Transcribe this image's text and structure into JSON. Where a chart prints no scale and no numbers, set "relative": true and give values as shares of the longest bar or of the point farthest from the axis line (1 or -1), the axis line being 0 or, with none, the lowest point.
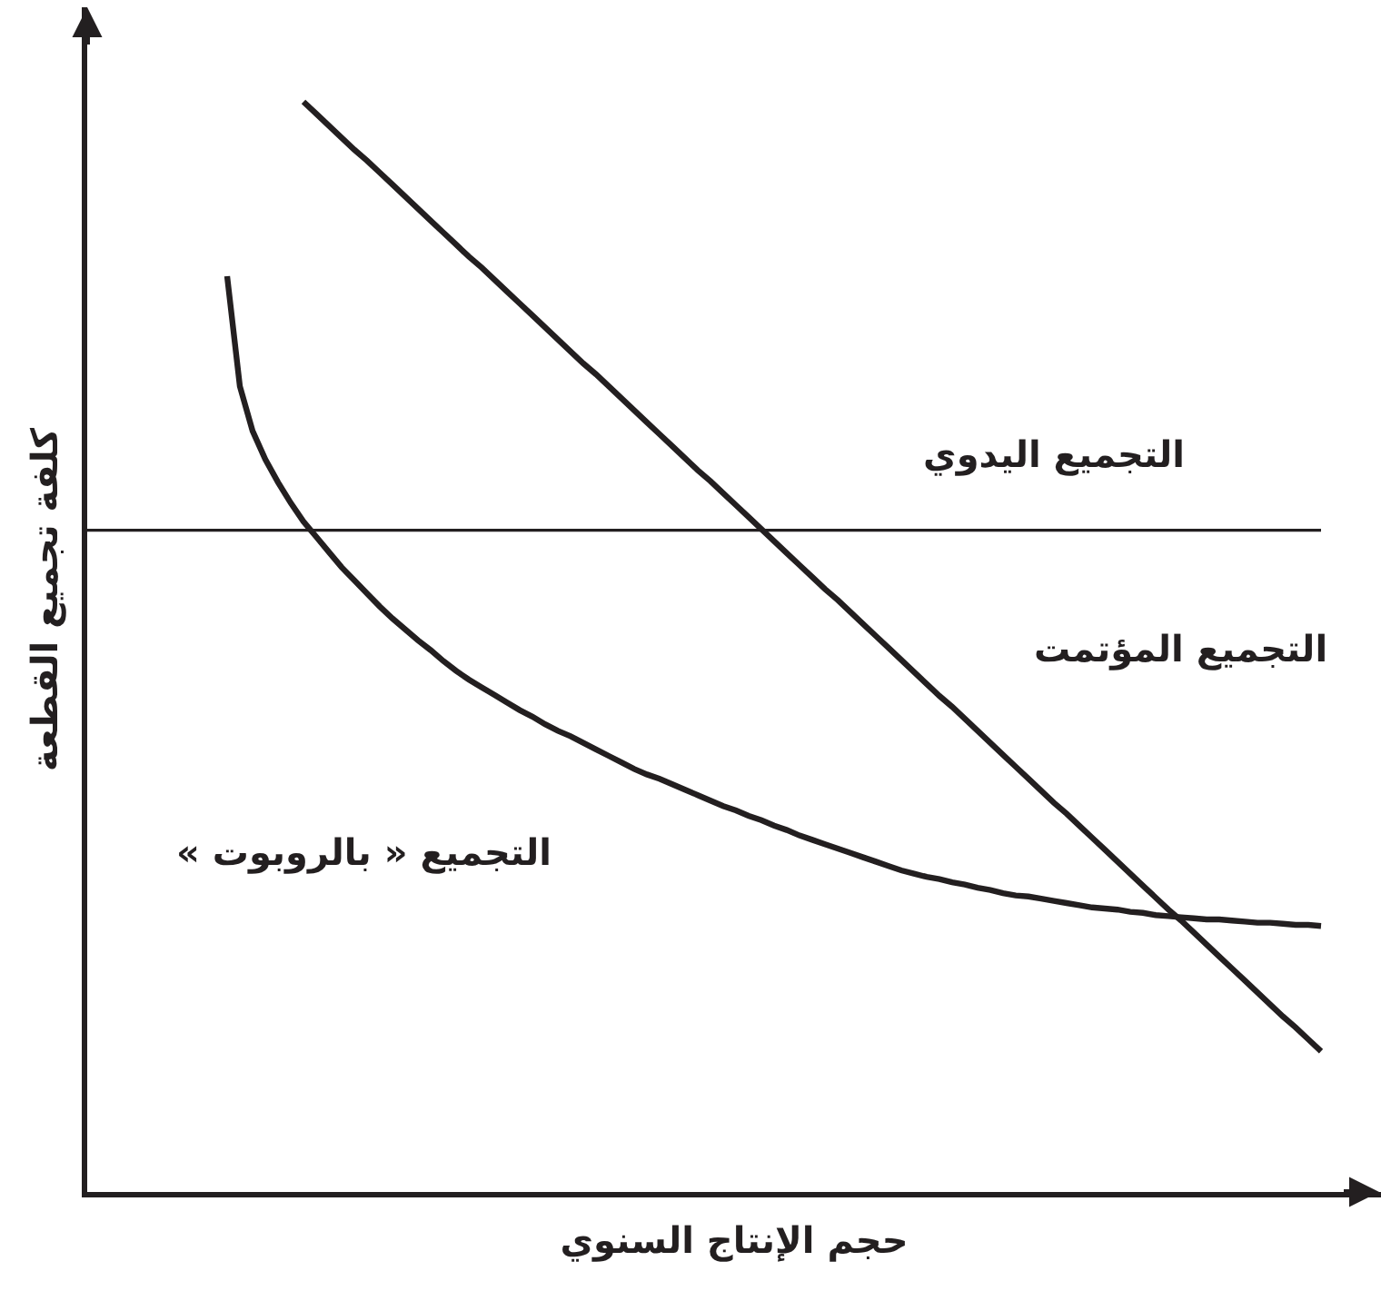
{
  "chart_data": {
    "type": "line",
    "relative": true,
    "tick_labels": false,
    "line_style": "solid",
    "xlabel": "حجم الإنتاج السنوي",
    "ylabel": "كلفة تجميع القطعة",
    "categories": [
      null,
      null,
      null,
      null,
      null,
      null,
      null,
      null,
      null,
      null,
      null,
      null,
      null,
      null,
      null,
      null,
      null,
      null,
      null,
      null,
      null,
      null,
      null,
      null,
      null,
      null,
      null,
      null,
      null,
      null,
      null,
      null,
      null,
      null,
      null,
      null,
      null,
      null,
      null,
      null,
      null,
      null,
      null,
      null,
      null,
      null,
      null,
      null,
      null,
      null,
      null,
      null,
      null,
      null,
      null,
      null,
      null,
      null,
      null,
      null,
      null,
      null,
      null,
      null,
      null,
      null,
      null,
      null,
      null,
      null,
      null,
      null,
      null,
      null,
      null,
      null,
      null,
      null,
      null,
      null,
      null,
      null,
      null,
      null,
      null,
      null,
      null,
      null,
      null,
      null,
      null,
      null,
      null,
      null,
      null,
      null,
      null,
      null
    ],
    "series": [
      {
        "name": "التجميع اليدوي",
        "color": "#231f20",
        "values": [
          0.607,
          0.607,
          0.607,
          0.607,
          0.607,
          0.607,
          0.607,
          0.607,
          0.607,
          0.607,
          0.607,
          0.607,
          0.607,
          0.607,
          0.607,
          0.607,
          0.607,
          0.607,
          0.607,
          0.607,
          0.607,
          0.607,
          0.607,
          0.607,
          0.607,
          0.607,
          0.607,
          0.607,
          0.607,
          0.607,
          0.607,
          0.607,
          0.607,
          0.607,
          0.607,
          0.607,
          0.607,
          0.607,
          0.607,
          0.607,
          0.607,
          0.607,
          0.607,
          0.607,
          0.607,
          0.607,
          0.607,
          0.607,
          0.607,
          0.607,
          0.607,
          0.607,
          0.607,
          0.607,
          0.607,
          0.607,
          0.607,
          0.607,
          0.607,
          0.607,
          0.607,
          0.607,
          0.607,
          0.607,
          0.607,
          0.607,
          0.607,
          0.607,
          0.607,
          0.607,
          0.607,
          0.607,
          0.607,
          0.607,
          0.607,
          0.607,
          0.607,
          0.607,
          0.607,
          0.607,
          0.607,
          0.607,
          0.607,
          0.607,
          0.607,
          0.607,
          0.607,
          0.607,
          0.607,
          0.607,
          0.607,
          0.607,
          0.607,
          0.607,
          0.607,
          0.607,
          0.607,
          0.607
        ]
      },
      {
        "name": "التجميع المؤتمت",
        "color": "#231f20",
        "values": [
          null,
          null,
          null,
          null,
          null,
          null,
          null,
          null,
          null,
          null,
          null,
          null,
          null,
          null,
          null,
          null,
          null,
          1.0,
          0.989,
          0.978,
          0.967,
          0.956,
          0.946,
          0.935,
          0.924,
          0.913,
          0.902,
          0.891,
          0.88,
          0.869,
          0.858,
          0.848,
          0.837,
          0.826,
          0.815,
          0.804,
          0.793,
          0.782,
          0.771,
          0.76,
          0.75,
          0.739,
          0.728,
          0.717,
          0.706,
          0.695,
          0.684,
          0.673,
          0.662,
          0.652,
          0.641,
          0.63,
          0.619,
          0.608,
          0.597,
          0.586,
          0.575,
          0.564,
          0.553,
          0.543,
          0.532,
          0.521,
          0.51,
          0.499,
          0.488,
          0.477,
          0.466,
          0.455,
          0.445,
          0.434,
          0.423,
          0.412,
          0.401,
          0.39,
          0.379,
          0.368,
          0.357,
          0.347,
          0.336,
          0.325,
          0.314,
          0.303,
          0.292,
          0.281,
          0.27,
          0.259,
          0.249,
          0.238,
          0.227,
          0.216,
          0.205,
          0.194,
          0.183,
          0.172,
          0.161,
          0.151,
          0.14,
          0.129
        ]
      },
      {
        "name": "التجميع « بالروبوت »",
        "color": "#231f20",
        "values": [
          null,
          null,
          null,
          null,
          null,
          null,
          null,
          null,
          null,
          null,
          null,
          0.84,
          0.739,
          0.698,
          0.672,
          0.651,
          0.632,
          0.615,
          0.601,
          0.587,
          0.573,
          0.561,
          0.549,
          0.537,
          0.526,
          0.516,
          0.506,
          0.497,
          0.487,
          0.478,
          0.47,
          0.463,
          0.456,
          0.449,
          0.442,
          0.436,
          0.429,
          0.423,
          0.418,
          0.412,
          0.406,
          0.4,
          0.394,
          0.388,
          0.383,
          0.379,
          0.374,
          0.369,
          0.364,
          0.359,
          0.354,
          0.35,
          0.345,
          0.341,
          0.336,
          0.332,
          0.327,
          0.323,
          0.319,
          0.315,
          0.311,
          0.307,
          0.303,
          0.299,
          0.295,
          0.292,
          0.289,
          0.287,
          0.284,
          0.282,
          0.279,
          0.277,
          0.274,
          0.272,
          0.271,
          0.269,
          0.267,
          0.265,
          0.263,
          0.261,
          0.26,
          0.259,
          0.257,
          0.256,
          0.254,
          0.253,
          0.252,
          0.251,
          0.25,
          0.25,
          0.249,
          0.248,
          0.247,
          0.247,
          0.246,
          0.245,
          0.245,
          0.244
        ]
      }
    ]
  }
}
